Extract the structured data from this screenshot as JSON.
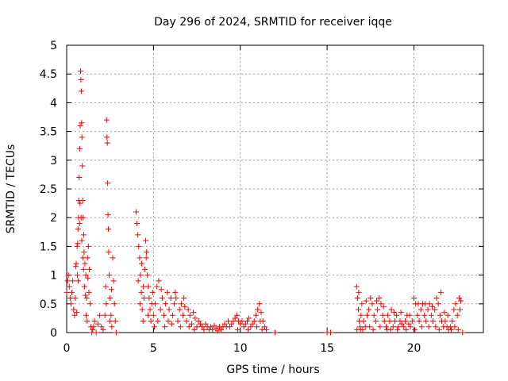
{
  "chart_data": {
    "type": "scatter",
    "title": "Day 296 of 2024, SRMTID for receiver iqqe",
    "xlabel": "GPS time / hours",
    "ylabel": "SRMTID / TECUs",
    "xlim": [
      0,
      24
    ],
    "ylim": [
      0,
      5
    ],
    "x_ticks": [
      0,
      5,
      10,
      15,
      20
    ],
    "x_tick_labels": [
      "0",
      "5",
      "10",
      "15",
      "20"
    ],
    "y_ticks": [
      0,
      0.5,
      1,
      1.5,
      2,
      2.5,
      3,
      3.5,
      4,
      4.5,
      5
    ],
    "y_tick_labels": [
      "0",
      "0.5",
      "1",
      "1.5",
      "2",
      "2.5",
      "3",
      "3.5",
      "4",
      "4.5",
      "5"
    ],
    "grid": true,
    "marker": "+",
    "color": "#ff0000",
    "series": [
      {
        "name": "SRMTID",
        "points": [
          [
            0.0,
            0.7
          ],
          [
            0.05,
            0.9
          ],
          [
            0.1,
            1.0
          ],
          [
            0.15,
            0.8
          ],
          [
            0.2,
            0.6
          ],
          [
            0.25,
            0.5
          ],
          [
            0.3,
            0.7
          ],
          [
            0.35,
            0.9
          ],
          [
            0.4,
            0.4
          ],
          [
            0.45,
            0.3
          ],
          [
            0.5,
            0.6
          ],
          [
            0.55,
            1.2
          ],
          [
            0.6,
            1.5
          ],
          [
            0.62,
            1.0
          ],
          [
            0.65,
            1.8
          ],
          [
            0.68,
            2.0
          ],
          [
            0.7,
            2.3
          ],
          [
            0.72,
            2.7
          ],
          [
            0.75,
            3.2
          ],
          [
            0.78,
            3.6
          ],
          [
            0.8,
            4.55
          ],
          [
            0.82,
            4.4
          ],
          [
            0.84,
            4.2
          ],
          [
            0.86,
            3.65
          ],
          [
            0.88,
            3.4
          ],
          [
            0.9,
            2.9
          ],
          [
            0.92,
            2.3
          ],
          [
            0.95,
            2.0
          ],
          [
            0.98,
            1.7
          ],
          [
            1.0,
            1.4
          ],
          [
            1.05,
            1.2
          ],
          [
            1.1,
            1.0
          ],
          [
            1.15,
            0.6
          ],
          [
            1.2,
            1.3
          ],
          [
            1.25,
            1.5
          ],
          [
            1.3,
            1.1
          ],
          [
            1.35,
            0.5
          ],
          [
            1.4,
            0.1
          ],
          [
            1.45,
            0.0
          ],
          [
            1.5,
            0.05
          ],
          [
            1.55,
            0.1
          ],
          [
            1.6,
            0.2
          ],
          [
            1.7,
            0.0
          ],
          [
            1.8,
            0.15
          ],
          [
            1.9,
            0.3
          ],
          [
            2.0,
            0.1
          ],
          [
            2.1,
            0.05
          ],
          [
            2.2,
            0.3
          ],
          [
            2.3,
            3.7
          ],
          [
            2.32,
            3.4
          ],
          [
            2.34,
            3.3
          ],
          [
            2.36,
            2.6
          ],
          [
            2.38,
            2.05
          ],
          [
            2.4,
            1.8
          ],
          [
            2.42,
            1.4
          ],
          [
            2.45,
            1.0
          ],
          [
            2.5,
            0.6
          ],
          [
            2.55,
            0.3
          ],
          [
            2.6,
            0.1
          ],
          [
            2.65,
            1.3
          ],
          [
            2.7,
            0.9
          ],
          [
            2.75,
            0.5
          ],
          [
            2.8,
            0.2
          ],
          [
            2.85,
            0.0
          ],
          [
            0.52,
            1.15
          ],
          [
            0.58,
            0.35
          ],
          [
            0.63,
            1.55
          ],
          [
            0.66,
            0.9
          ],
          [
            0.74,
            1.9
          ],
          [
            0.77,
            2.25
          ],
          [
            0.83,
            2.0
          ],
          [
            0.87,
            1.6
          ],
          [
            0.93,
            1.3
          ],
          [
            0.97,
            1.1
          ],
          [
            1.02,
            0.8
          ],
          [
            1.08,
            0.65
          ],
          [
            1.12,
            0.3
          ],
          [
            1.18,
            0.2
          ],
          [
            1.22,
            0.95
          ],
          [
            1.28,
            0.7
          ],
          [
            2.25,
            0.8
          ],
          [
            2.28,
            0.5
          ],
          [
            2.48,
            0.2
          ],
          [
            2.58,
            0.75
          ],
          [
            4.0,
            2.1
          ],
          [
            4.05,
            1.9
          ],
          [
            4.1,
            1.7
          ],
          [
            4.15,
            1.5
          ],
          [
            4.2,
            1.3
          ],
          [
            4.25,
            1.0
          ],
          [
            4.3,
            0.7
          ],
          [
            4.35,
            0.4
          ],
          [
            4.4,
            0.2
          ],
          [
            4.45,
            0.6
          ],
          [
            4.5,
            1.1
          ],
          [
            4.55,
            1.6
          ],
          [
            4.6,
            1.4
          ],
          [
            4.65,
            1.0
          ],
          [
            4.7,
            0.8
          ],
          [
            4.75,
            0.6
          ],
          [
            4.8,
            0.4
          ],
          [
            4.85,
            0.2
          ],
          [
            4.9,
            0.5
          ],
          [
            4.95,
            0.7
          ],
          [
            5.0,
            0.3
          ],
          [
            5.1,
            0.5
          ],
          [
            5.2,
            0.8
          ],
          [
            5.3,
            0.9
          ],
          [
            5.4,
            0.4
          ],
          [
            5.5,
            0.6
          ],
          [
            5.6,
            0.3
          ],
          [
            5.7,
            0.5
          ],
          [
            5.8,
            0.7
          ],
          [
            5.9,
            0.4
          ],
          [
            6.0,
            0.6
          ],
          [
            6.1,
            0.3
          ],
          [
            6.2,
            0.5
          ],
          [
            6.3,
            0.6
          ],
          [
            6.4,
            0.2
          ],
          [
            6.5,
            0.4
          ],
          [
            6.6,
            0.5
          ],
          [
            6.7,
            0.3
          ],
          [
            6.8,
            0.45
          ],
          [
            6.9,
            0.2
          ],
          [
            7.0,
            0.4
          ],
          [
            7.1,
            0.3
          ],
          [
            7.2,
            0.15
          ],
          [
            7.3,
            0.35
          ],
          [
            7.4,
            0.25
          ],
          [
            7.5,
            0.1
          ],
          [
            7.6,
            0.2
          ],
          [
            7.7,
            0.15
          ],
          [
            7.8,
            0.1
          ],
          [
            7.9,
            0.05
          ],
          [
            8.0,
            0.15
          ],
          [
            8.1,
            0.1
          ],
          [
            8.2,
            0.05
          ],
          [
            8.3,
            0.1
          ],
          [
            8.4,
            0.05
          ],
          [
            8.5,
            0.12
          ],
          [
            8.6,
            0.08
          ],
          [
            8.7,
            0.03
          ],
          [
            8.8,
            0.1
          ],
          [
            8.9,
            0.05
          ],
          [
            9.0,
            0.1
          ],
          [
            9.1,
            0.15
          ],
          [
            9.2,
            0.1
          ],
          [
            9.3,
            0.2
          ],
          [
            9.4,
            0.1
          ],
          [
            9.5,
            0.15
          ],
          [
            9.6,
            0.2
          ],
          [
            9.7,
            0.25
          ],
          [
            9.8,
            0.3
          ],
          [
            9.9,
            0.2
          ],
          [
            10.0,
            0.15
          ],
          [
            10.1,
            0.2
          ],
          [
            10.2,
            0.1
          ],
          [
            10.3,
            0.15
          ],
          [
            10.4,
            0.2
          ],
          [
            10.5,
            0.25
          ],
          [
            10.6,
            0.1
          ],
          [
            10.7,
            0.15
          ],
          [
            10.8,
            0.2
          ],
          [
            10.9,
            0.3
          ],
          [
            11.0,
            0.4
          ],
          [
            11.1,
            0.5
          ],
          [
            11.2,
            0.35
          ],
          [
            11.3,
            0.2
          ],
          [
            11.4,
            0.1
          ],
          [
            11.5,
            0.05
          ],
          [
            4.12,
            0.9
          ],
          [
            4.22,
            0.5
          ],
          [
            4.32,
            1.2
          ],
          [
            4.42,
            0.8
          ],
          [
            4.58,
            1.3
          ],
          [
            4.68,
            0.3
          ],
          [
            5.05,
            0.1
          ],
          [
            5.25,
            0.2
          ],
          [
            5.45,
            0.75
          ],
          [
            5.65,
            0.1
          ],
          [
            5.85,
            0.2
          ],
          [
            6.05,
            0.15
          ],
          [
            6.25,
            0.7
          ],
          [
            6.55,
            0.1
          ],
          [
            6.75,
            0.6
          ],
          [
            7.05,
            0.1
          ],
          [
            7.35,
            0.05
          ],
          [
            9.85,
            0.05
          ],
          [
            10.45,
            0.05
          ],
          [
            10.95,
            0.1
          ],
          [
            11.15,
            0.2
          ],
          [
            11.25,
            0.05
          ],
          [
            12.0,
            0.0
          ],
          [
            15.0,
            0.0
          ],
          [
            15.2,
            0.0
          ],
          [
            16.7,
            0.8
          ],
          [
            16.75,
            0.6
          ],
          [
            16.8,
            0.4
          ],
          [
            16.85,
            0.2
          ],
          [
            16.9,
            0.1
          ],
          [
            16.95,
            0.3
          ],
          [
            17.0,
            0.5
          ],
          [
            17.1,
            0.2
          ],
          [
            17.2,
            0.1
          ],
          [
            17.3,
            0.3
          ],
          [
            17.4,
            0.4
          ],
          [
            17.5,
            0.6
          ],
          [
            17.6,
            0.5
          ],
          [
            17.7,
            0.3
          ],
          [
            17.8,
            0.2
          ],
          [
            17.9,
            0.4
          ],
          [
            18.0,
            0.6
          ],
          [
            18.1,
            0.5
          ],
          [
            18.2,
            0.3
          ],
          [
            18.3,
            0.2
          ],
          [
            18.4,
            0.1
          ],
          [
            18.5,
            0.3
          ],
          [
            18.6,
            0.2
          ],
          [
            18.7,
            0.4
          ],
          [
            18.8,
            0.1
          ],
          [
            18.9,
            0.2
          ],
          [
            19.0,
            0.3
          ],
          [
            19.1,
            0.1
          ],
          [
            19.2,
            0.2
          ],
          [
            19.3,
            0.15
          ],
          [
            19.4,
            0.1
          ],
          [
            19.5,
            0.2
          ],
          [
            19.6,
            0.3
          ],
          [
            19.7,
            0.15
          ],
          [
            19.8,
            0.1
          ],
          [
            19.9,
            0.2
          ],
          [
            20.0,
            0.6
          ],
          [
            20.1,
            0.5
          ],
          [
            20.2,
            0.3
          ],
          [
            20.3,
            0.2
          ],
          [
            20.4,
            0.4
          ],
          [
            20.5,
            0.5
          ],
          [
            20.6,
            0.3
          ],
          [
            20.7,
            0.2
          ],
          [
            20.8,
            0.4
          ],
          [
            20.9,
            0.5
          ],
          [
            21.0,
            0.3
          ],
          [
            21.1,
            0.2
          ],
          [
            21.2,
            0.4
          ],
          [
            21.3,
            0.6
          ],
          [
            21.4,
            0.5
          ],
          [
            21.5,
            0.3
          ],
          [
            21.6,
            0.2
          ],
          [
            21.7,
            0.1
          ],
          [
            21.8,
            0.2
          ],
          [
            21.9,
            0.1
          ],
          [
            22.0,
            0.05
          ],
          [
            22.1,
            0.1
          ],
          [
            22.2,
            0.2
          ],
          [
            22.3,
            0.4
          ],
          [
            22.4,
            0.5
          ],
          [
            22.5,
            0.3
          ],
          [
            22.6,
            0.6
          ],
          [
            22.65,
            0.4
          ],
          [
            22.7,
            0.55
          ],
          [
            22.8,
            0.0
          ],
          [
            16.72,
            0.05
          ],
          [
            16.82,
            0.7
          ],
          [
            16.92,
            0.05
          ],
          [
            17.05,
            0.05
          ],
          [
            17.25,
            0.55
          ],
          [
            17.45,
            0.1
          ],
          [
            17.65,
            0.05
          ],
          [
            17.85,
            0.55
          ],
          [
            18.05,
            0.1
          ],
          [
            18.25,
            0.45
          ],
          [
            18.45,
            0.05
          ],
          [
            18.65,
            0.05
          ],
          [
            18.85,
            0.35
          ],
          [
            19.05,
            0.05
          ],
          [
            19.25,
            0.35
          ],
          [
            19.55,
            0.05
          ],
          [
            19.75,
            0.3
          ],
          [
            20.05,
            0.05
          ],
          [
            20.25,
            0.5
          ],
          [
            20.45,
            0.1
          ],
          [
            20.65,
            0.5
          ],
          [
            20.85,
            0.1
          ],
          [
            21.05,
            0.45
          ],
          [
            21.25,
            0.1
          ],
          [
            21.45,
            0.05
          ],
          [
            21.55,
            0.7
          ],
          [
            21.75,
            0.35
          ],
          [
            21.95,
            0.3
          ],
          [
            22.15,
            0.05
          ],
          [
            22.35,
            0.1
          ],
          [
            22.55,
            0.05
          ]
        ]
      }
    ]
  }
}
